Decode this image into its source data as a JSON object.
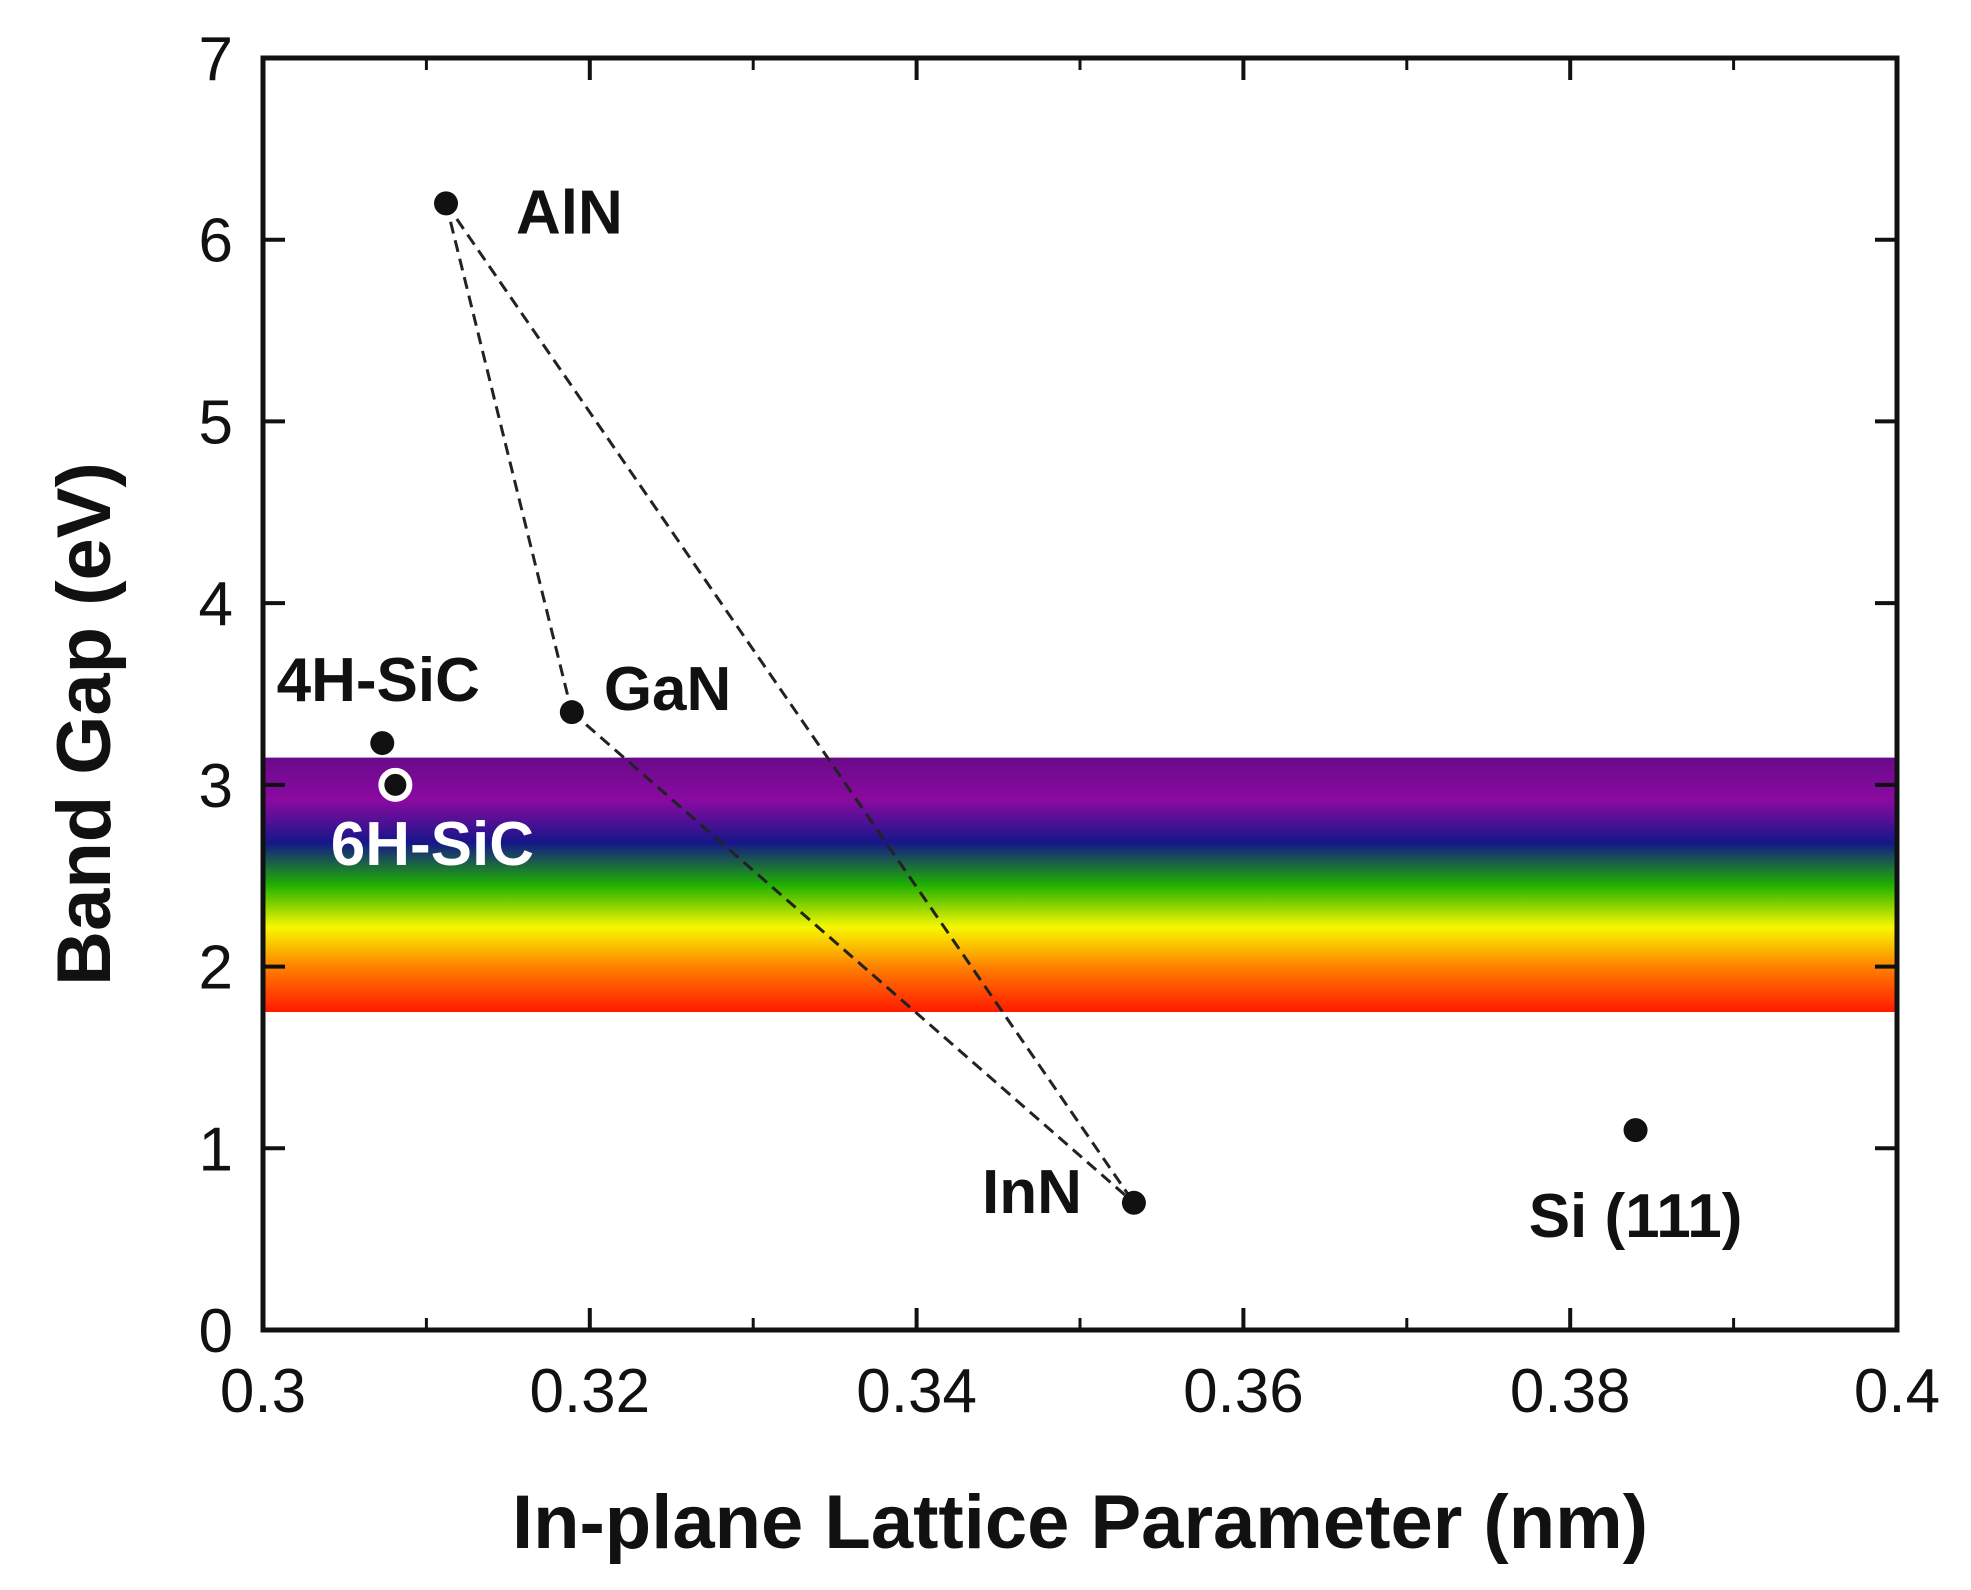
{
  "chart_data": {
    "type": "scatter",
    "title": "",
    "xlabel": "In-plane Lattice Parameter (nm)",
    "ylabel": "Band Gap (eV)",
    "xlim": [
      0.3,
      0.4
    ],
    "ylim": [
      0,
      7
    ],
    "xticks": [
      "0.3",
      "0.32",
      "0.34",
      "0.36",
      "0.38",
      "0.4"
    ],
    "yticks": [
      "0",
      "1",
      "2",
      "3",
      "4",
      "5",
      "6",
      "7"
    ],
    "grid": false,
    "visible_spectrum_band": {
      "ymin": 1.75,
      "ymax": 3.15,
      "colors": [
        "#ff1a00",
        "#ff7a00",
        "#f7f700",
        "#1fb000",
        "#16168a",
        "#8a0aa0",
        "#6a0a8a"
      ]
    },
    "points": [
      {
        "label": "AlN",
        "x": 0.3112,
        "y": 6.2,
        "marker": "filled",
        "label_color": "#111111"
      },
      {
        "label": "GaN",
        "x": 0.3189,
        "y": 3.4,
        "marker": "filled",
        "label_color": "#111111"
      },
      {
        "label": "InN",
        "x": 0.3533,
        "y": 0.7,
        "marker": "filled",
        "label_color": "#111111"
      },
      {
        "label": "4H-SiC",
        "x": 0.3073,
        "y": 3.23,
        "marker": "filled",
        "label_color": "#111111"
      },
      {
        "label": "6H-SiC",
        "x": 0.3081,
        "y": 3.0,
        "marker": "open",
        "label_color": "#ffffff"
      },
      {
        "label": "Si (111)",
        "x": 0.384,
        "y": 1.1,
        "marker": "filled",
        "label_color": "#111111"
      }
    ],
    "dashed_bowing_curves": [
      [
        "AlN",
        "InN"
      ],
      [
        "AlN",
        "GaN"
      ],
      [
        "GaN",
        "InN"
      ]
    ]
  }
}
